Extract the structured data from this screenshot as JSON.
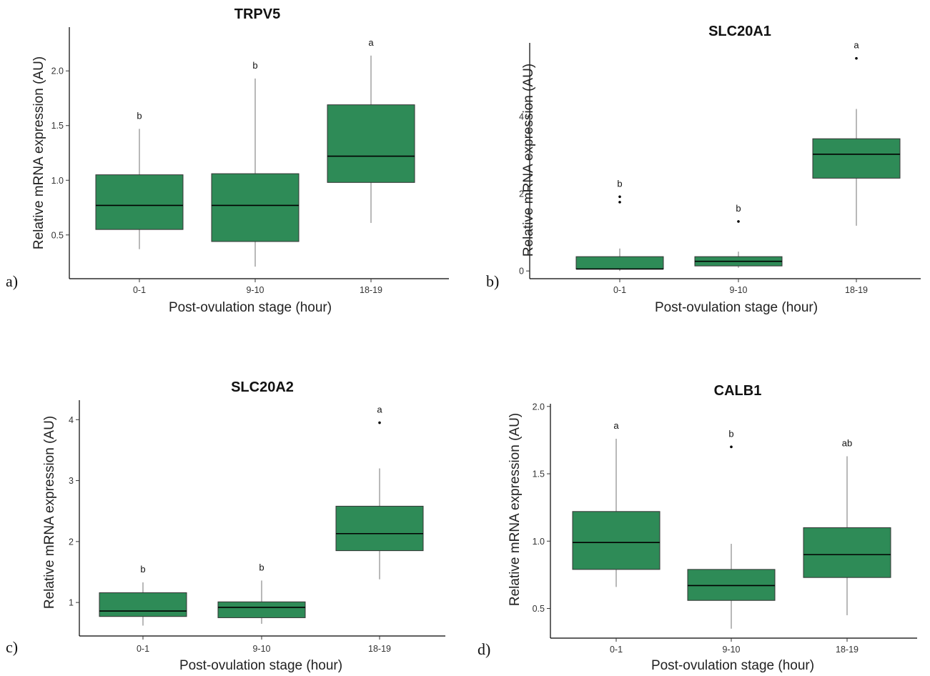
{
  "colors": {
    "box_fill": "#2e8b57",
    "axis": "#000000",
    "whisker": "#8a8a8a"
  },
  "chart_data": [
    {
      "type": "box",
      "panel_label": "a)",
      "title": "TRPV5",
      "xlabel": "Post-ovulation stage (hour)",
      "ylabel": "Relative mRNA expression (AU)",
      "categories": [
        "0-1",
        "9-10",
        "18-19"
      ],
      "yticks": [
        0.5,
        1.0,
        1.5,
        2.0
      ],
      "ytick_labels": [
        "0.5",
        "1.0",
        "1.5",
        "2.0"
      ],
      "ylim": [
        0.1,
        2.4
      ],
      "boxes": [
        {
          "whisker_low": 0.37,
          "q1": 0.55,
          "median": 0.77,
          "q3": 1.05,
          "whisker_high": 1.47,
          "outliers": [],
          "sig": "b"
        },
        {
          "whisker_low": 0.21,
          "q1": 0.44,
          "median": 0.77,
          "q3": 1.06,
          "whisker_high": 1.93,
          "outliers": [],
          "sig": "b"
        },
        {
          "whisker_low": 0.61,
          "q1": 0.98,
          "median": 1.22,
          "q3": 1.69,
          "whisker_high": 2.14,
          "outliers": [],
          "sig": "a"
        }
      ]
    },
    {
      "type": "box",
      "panel_label": "b)",
      "title": "SLC20A1",
      "xlabel": "Post-ovulation stage (hour)",
      "ylabel": "Relative mRNA expression (AU)",
      "categories": [
        "0-1",
        "9-10",
        "18-19"
      ],
      "yticks": [
        0,
        2,
        4
      ],
      "ytick_labels": [
        "0",
        "2",
        "4"
      ],
      "ylim": [
        -0.2,
        5.9
      ],
      "boxes": [
        {
          "whisker_low": 0.0,
          "q1": 0.05,
          "median": 0.05,
          "q3": 0.37,
          "whisker_high": 0.58,
          "outliers": [
            1.78,
            1.92
          ],
          "sig": "b"
        },
        {
          "whisker_low": 0.08,
          "q1": 0.13,
          "median": 0.25,
          "q3": 0.37,
          "whisker_high": 0.5,
          "outliers": [
            1.28
          ],
          "sig": "b"
        },
        {
          "whisker_low": 1.17,
          "q1": 2.4,
          "median": 3.02,
          "q3": 3.42,
          "whisker_high": 4.19,
          "outliers": [
            5.5
          ],
          "sig": "a"
        }
      ]
    },
    {
      "type": "box",
      "panel_label": "c)",
      "title": "SLC20A2",
      "xlabel": "Post-ovulation stage (hour)",
      "ylabel": "Relative mRNA expression (AU)",
      "categories": [
        "0-1",
        "9-10",
        "18-19"
      ],
      "yticks": [
        1,
        2,
        3,
        4
      ],
      "ytick_labels": [
        "1",
        "2",
        "3",
        "4"
      ],
      "ylim": [
        0.45,
        4.32
      ],
      "boxes": [
        {
          "whisker_low": 0.62,
          "q1": 0.77,
          "median": 0.86,
          "q3": 1.16,
          "whisker_high": 1.33,
          "outliers": [],
          "sig": "b"
        },
        {
          "whisker_low": 0.65,
          "q1": 0.75,
          "median": 0.92,
          "q3": 1.01,
          "whisker_high": 1.36,
          "outliers": [],
          "sig": "b"
        },
        {
          "whisker_low": 1.38,
          "q1": 1.85,
          "median": 2.13,
          "q3": 2.58,
          "whisker_high": 3.2,
          "outliers": [
            3.95
          ],
          "sig": "a"
        }
      ]
    },
    {
      "type": "box",
      "panel_label": "d)",
      "title": "CALB1",
      "xlabel": "Post-ovulation stage (hour)",
      "ylabel": "Relative mRNA expression (AU)",
      "categories": [
        "0-1",
        "9-10",
        "18-19"
      ],
      "yticks": [
        0.5,
        1.0,
        1.5,
        2.0
      ],
      "ytick_labels": [
        "0.5",
        "1.0",
        "1.5",
        "2.0"
      ],
      "ylim": [
        0.28,
        2.02
      ],
      "boxes": [
        {
          "whisker_low": 0.66,
          "q1": 0.79,
          "median": 0.99,
          "q3": 1.22,
          "whisker_high": 1.76,
          "outliers": [],
          "sig": "a"
        },
        {
          "whisker_low": 0.35,
          "q1": 0.56,
          "median": 0.67,
          "q3": 0.79,
          "whisker_high": 0.98,
          "outliers": [
            1.7
          ],
          "sig": "b"
        },
        {
          "whisker_low": 0.45,
          "q1": 0.73,
          "median": 0.9,
          "q3": 1.1,
          "whisker_high": 1.63,
          "outliers": [],
          "sig": "ab"
        }
      ]
    }
  ]
}
